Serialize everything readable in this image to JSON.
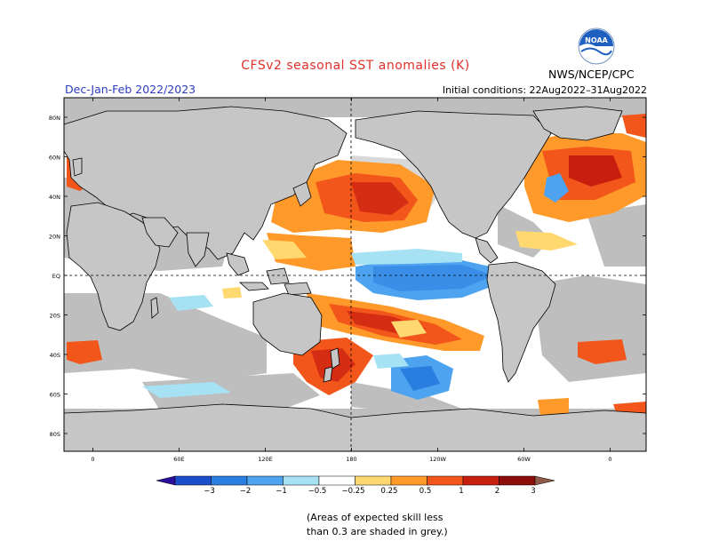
{
  "title": "CFSv2 seasonal SST anomalies (K)",
  "period": "Dec-Jan-Feb 2022/2023",
  "initial_conditions": "Initial conditions: 22Aug2022–31Aug2022",
  "agency": "NWS/NCEP/CPC",
  "logo_text": "NOAA",
  "note_lines": [
    "(Areas of expected skill less",
    "than 0.3 are shaded in grey.)"
  ],
  "lat_labels": [
    "80N",
    "60N",
    "40N",
    "20N",
    "EQ",
    "20S",
    "40S",
    "60S",
    "80S"
  ],
  "lon_labels": [
    "0",
    "60E",
    "120E",
    "180",
    "120W",
    "60W",
    "0"
  ],
  "legend": {
    "tick_labels": [
      "−3",
      "−2",
      "−1",
      "−0.5",
      "−0.25",
      "0.25",
      "0.5",
      "1",
      "2",
      "3"
    ],
    "colors": [
      "#2e0e9e",
      "#1c4ecc",
      "#2a7ee0",
      "#4ea3f0",
      "#a6e2f4",
      "#ffffff",
      "#ffd870",
      "#ff9a2a",
      "#f2561a",
      "#c81e10",
      "#8b0e08",
      "#8e5a4a"
    ]
  },
  "map_colors": {
    "land": "#c6c6c6",
    "low_skill_ocean": "#bebebe",
    "coast": "#000000"
  }
}
